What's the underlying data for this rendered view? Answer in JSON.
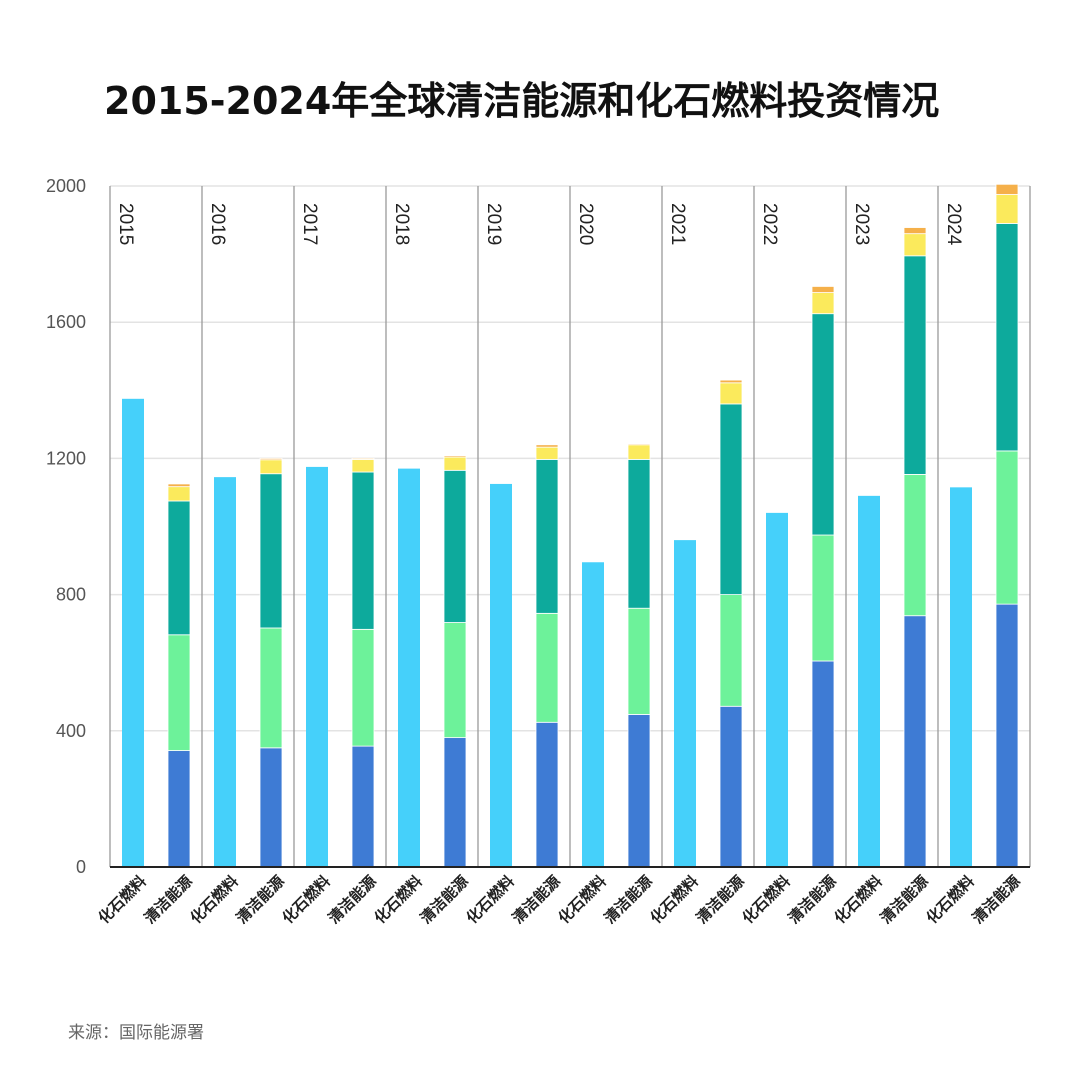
{
  "title": "2015-2024年全球清洁能源和化石燃料投资情况",
  "source": "来源：国际能源署",
  "chart_data": {
    "type": "bar",
    "stacked": true,
    "grouped_by": "year",
    "title": "2015-2024年全球清洁能源和化石燃料投资情况",
    "xlabel": "",
    "ylabel": "",
    "ylim": [
      0,
      2000
    ],
    "yticks": [
      0,
      400,
      800,
      1200,
      1600,
      2000
    ],
    "grid": true,
    "years": [
      "2015",
      "2016",
      "2017",
      "2018",
      "2019",
      "2020",
      "2021",
      "2022",
      "2023",
      "2024"
    ],
    "categories": [
      "化石燃料",
      "清洁能源"
    ],
    "colors": {
      "fossil": "#45D0FA",
      "clean": [
        "#3E7BD4",
        "#6DF29A",
        "#0DAA9C",
        "#FBEA5C",
        "#F5B04A"
      ]
    },
    "fossil": [
      1375,
      1145,
      1175,
      1170,
      1125,
      895,
      960,
      1040,
      1090,
      1115
    ],
    "clean_cumulative": [
      [
        342,
        682,
        1075,
        1117,
        1125
      ],
      [
        350,
        702,
        1155,
        1196,
        1200
      ],
      [
        355,
        698,
        1160,
        1197,
        1200
      ],
      [
        380,
        718,
        1165,
        1204,
        1208
      ],
      [
        425,
        745,
        1197,
        1233,
        1240
      ],
      [
        448,
        760,
        1197,
        1240,
        1243
      ],
      [
        472,
        800,
        1360,
        1422,
        1430
      ],
      [
        605,
        975,
        1625,
        1687,
        1705
      ],
      [
        738,
        1153,
        1795,
        1860,
        1878
      ],
      [
        772,
        1222,
        1890,
        1975,
        2005
      ]
    ]
  }
}
